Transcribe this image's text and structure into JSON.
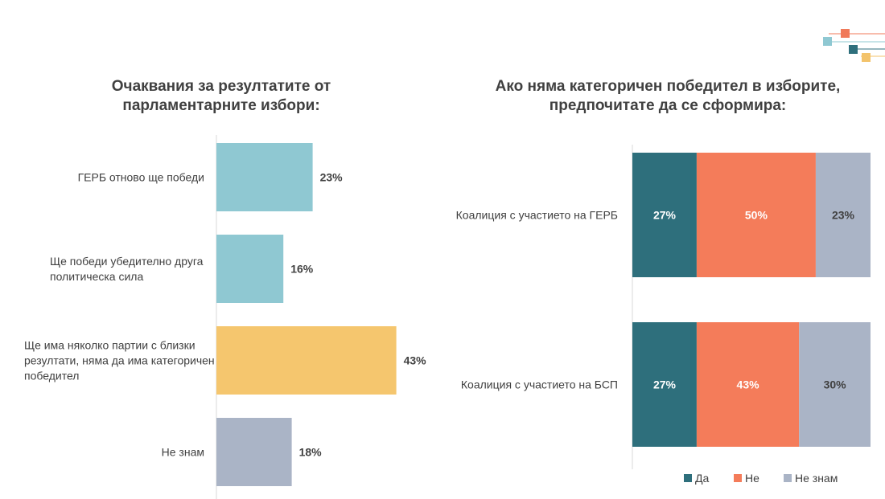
{
  "logo_colors": [
    "#8fc8d2",
    "#f07a5a",
    "#2e6f7c",
    "#f3c36b",
    "#aab4c6"
  ],
  "chart_data": [
    {
      "type": "bar",
      "orientation": "horizontal",
      "title": "Очаквания за резултатите от парламентарните избори:",
      "categories": [
        "ГЕРБ отново ще победи",
        "Ще победи убедително друга политическа сила",
        "Ще има няколко партии с близки резултати,  няма да има категоричен победител",
        "Не знам"
      ],
      "category_lines": [
        [
          "ГЕРБ отново ще победи"
        ],
        [
          "Ще победи убедително друга",
          "политическа сила"
        ],
        [
          "Ще има няколко партии с близки",
          "резултати,  няма да има категоричен",
          "победител"
        ],
        [
          "Не знам"
        ]
      ],
      "values": [
        23,
        16,
        43,
        18
      ],
      "value_labels": [
        "23%",
        "16%",
        "43%",
        "18%"
      ],
      "colors": [
        "#8fc8d2",
        "#8fc8d2",
        "#f5c66e",
        "#aab4c6"
      ],
      "xlim": [
        0,
        100
      ],
      "grid": false
    },
    {
      "type": "bar",
      "orientation": "horizontal",
      "stacked": true,
      "title": "Ако няма категоричен победител в изборите, предпочитате да се сформира:",
      "categories": [
        "Коалиция с участието  на ГЕРБ",
        "Коалиция с участието  на БСП"
      ],
      "series": [
        {
          "name": "Да",
          "values": [
            27,
            27
          ],
          "labels": [
            "27%",
            "27%"
          ],
          "color": "#2e6f7c"
        },
        {
          "name": "Не",
          "values": [
            50,
            43
          ],
          "labels": [
            "50%",
            "43%"
          ],
          "color": "#f47c5a"
        },
        {
          "name": "Не знам",
          "values": [
            23,
            30
          ],
          "labels": [
            "23%",
            "30%"
          ],
          "color": "#aab4c6"
        }
      ],
      "xlim": [
        0,
        100
      ],
      "legend": "bottom",
      "grid": false
    }
  ]
}
